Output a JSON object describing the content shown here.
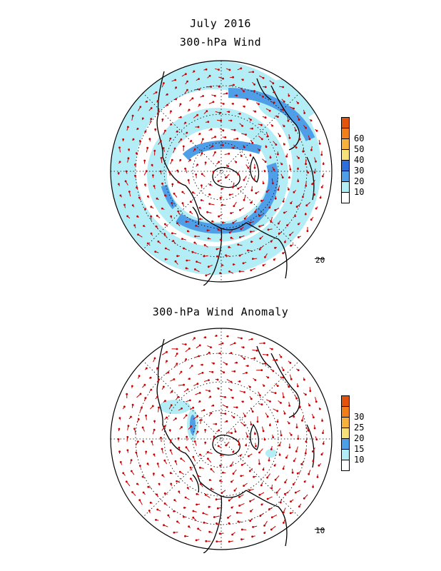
{
  "title": "July 2016",
  "top_panel": {
    "title": "300-hPa Wind",
    "reference_vector": "20",
    "colorbar": {
      "labels": [
        "60",
        "50",
        "40",
        "30",
        "20",
        "10"
      ],
      "colors": [
        "#ffffff",
        "#b3eef7",
        "#4f9ee8",
        "#2f6fdc",
        "#f5e07a",
        "#f7b23b",
        "#f07e1b",
        "#e2540c"
      ]
    }
  },
  "bottom_panel": {
    "title": "300-hPa Wind Anomaly",
    "reference_vector": "10",
    "colorbar": {
      "labels": [
        "30",
        "25",
        "20",
        "15",
        "10"
      ],
      "colors": [
        "#ffffff",
        "#b3eef7",
        "#4f9ee8",
        "#f5e07a",
        "#f7b23b",
        "#f07e1b",
        "#e2540c"
      ]
    }
  },
  "style": {
    "vector_color": "#cc0000",
    "coast_color": "#000000",
    "grid_color": "#000000"
  }
}
